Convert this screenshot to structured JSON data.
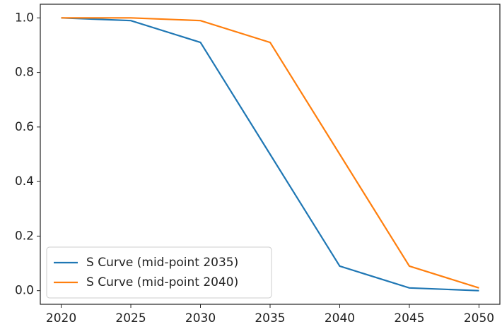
{
  "chart_data": {
    "type": "line",
    "x": [
      2020,
      2025,
      2030,
      2035,
      2040,
      2045,
      2050
    ],
    "series": [
      {
        "name": "S Curve (mid-point 2035)",
        "color": "#1f77b4",
        "values": [
          1.0,
          0.99,
          0.91,
          0.5,
          0.09,
          0.01,
          0.0
        ]
      },
      {
        "name": "S Curve (mid-point 2040)",
        "color": "#ff7f0e",
        "values": [
          1.0,
          1.0,
          0.99,
          0.91,
          0.5,
          0.09,
          0.01
        ]
      }
    ],
    "xlim": [
      2018.5,
      2051.5
    ],
    "xticks": [
      2020,
      2025,
      2030,
      2035,
      2040,
      2045,
      2050
    ],
    "ylim": [
      -0.05,
      1.05
    ],
    "yticks": [
      {
        "value": 0,
        "label": "0.0"
      },
      0.2,
      0.4,
      0.6,
      0.8,
      {
        "value": 1,
        "label": "1.0"
      }
    ],
    "legend": "lower left",
    "grid": false
  }
}
